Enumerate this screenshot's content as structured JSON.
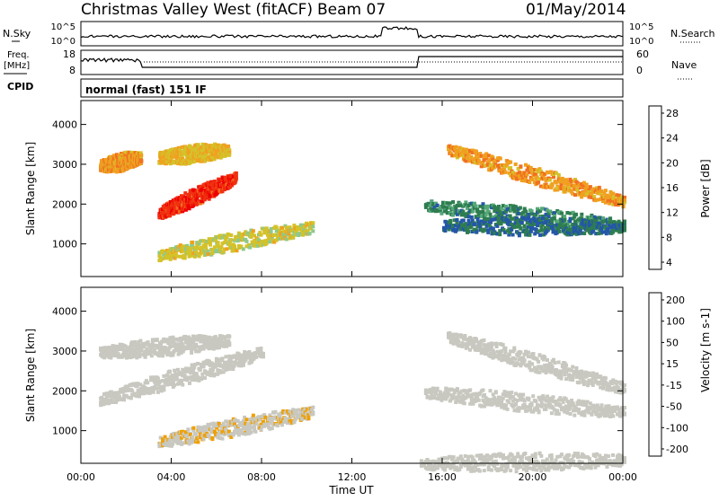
{
  "header": {
    "station": "Christmas Valley West (fitACF)",
    "beam": "Beam 07",
    "date": "01/May/2014"
  },
  "panels": {
    "nsky_label": "N.Sky",
    "nsearch_label": "N.Search",
    "nsky_ticks": [
      "10^5",
      "10^0"
    ],
    "freq_label_line1": "Freq.",
    "freq_label_line2": "[MHz]",
    "freq_ticks": [
      "18",
      "8"
    ],
    "nave_label": "Nave",
    "nave_ticks": [
      "60",
      "0"
    ],
    "cpid_label": "CPID",
    "cpid_text": "normal (fast) 151 IF"
  },
  "chart_data": [
    {
      "type": "heatmap",
      "title": "",
      "xlabel": "Time UT",
      "ylabel": "Slant Range [km]",
      "xlim": [
        0,
        24
      ],
      "ylim": [
        180,
        4600
      ],
      "x_ticks": [
        "00:00",
        "04:00",
        "08:00",
        "12:00",
        "16:00",
        "20:00",
        "00:00"
      ],
      "y_ticks": [
        "1000",
        "2000",
        "3000",
        "4000"
      ],
      "colorbar": {
        "label": "Power [dB]",
        "ticks": [
          "28",
          "24",
          "20",
          "16",
          "12",
          "8",
          "4"
        ],
        "range": [
          0,
          30
        ],
        "colors": [
          "#0000ff",
          "#2456a8",
          "#2e7d50",
          "#56a878",
          "#8fc88a",
          "#d4c22a",
          "#f0a020",
          "#f07020",
          "#f03010",
          "#ee0000"
        ]
      },
      "features": [
        {
          "name": "morning upper band",
          "t_start": 0.8,
          "t_end": 2.6,
          "range_start": 3000,
          "range_end": 3200,
          "value": 20
        },
        {
          "name": "morning upper band 2",
          "t_start": 3.4,
          "t_end": 6.5,
          "range_start": 3200,
          "range_end": 3400,
          "value": 18
        },
        {
          "name": "morning mid band",
          "t_start": 3.4,
          "t_end": 6.8,
          "range_start": 1800,
          "range_end": 2700,
          "value": 26
        },
        {
          "name": "morning lower band",
          "t_start": 3.4,
          "t_end": 10.2,
          "range_start": 750,
          "range_end": 1450,
          "value": 16
        },
        {
          "name": "evening upper band",
          "t_start": 16.2,
          "t_end": 24.0,
          "range_start": 3400,
          "range_end": 2100,
          "value": 20
        },
        {
          "name": "evening mid band",
          "t_start": 15.2,
          "t_end": 24.0,
          "range_start": 2000,
          "range_end": 1500,
          "value": 8
        },
        {
          "name": "evening lower band",
          "t_start": 16.0,
          "t_end": 24.0,
          "range_start": 1500,
          "range_end": 1450,
          "value": 6
        }
      ]
    },
    {
      "type": "heatmap",
      "title": "",
      "xlabel": "Time UT",
      "ylabel": "Slant Range [km]",
      "xlim": [
        0,
        24
      ],
      "ylim": [
        180,
        4600
      ],
      "x_ticks": [
        "00:00",
        "04:00",
        "08:00",
        "12:00",
        "16:00",
        "20:00",
        "00:00"
      ],
      "y_ticks": [
        "1000",
        "2000",
        "3000",
        "4000"
      ],
      "colorbar": {
        "label": "Velocity [m s-1]",
        "ticks": [
          "200",
          "100",
          "50",
          "15",
          "-15",
          "-50",
          "-100",
          "-200"
        ],
        "range": [
          -250,
          250
        ],
        "colors": [
          "#ee0000",
          "#f05010",
          "#f08010",
          "#f0a000",
          "#c8c8c0",
          "#c8c8c0",
          "#78c850",
          "#2e8c40",
          "#2456a8",
          "#1020c0"
        ]
      },
      "features": [
        {
          "name": "morning upper band",
          "t_start": 0.8,
          "t_end": 6.5,
          "range_start": 3000,
          "range_end": 3300,
          "value": 0
        },
        {
          "name": "morning mid band",
          "t_start": 0.8,
          "t_end": 8.0,
          "range_start": 1800,
          "range_end": 3000,
          "value": 0
        },
        {
          "name": "morning lower band",
          "t_start": 3.4,
          "t_end": 10.2,
          "range_start": 750,
          "range_end": 1500,
          "value": -45
        },
        {
          "name": "evening upper band",
          "t_start": 16.2,
          "t_end": 24.0,
          "range_start": 3400,
          "range_end": 2100,
          "value": 0
        },
        {
          "name": "evening mid band",
          "t_start": 15.2,
          "t_end": 24.0,
          "range_start": 2000,
          "range_end": 1500,
          "value": 0
        },
        {
          "name": "ground scatter near range",
          "t_start": 15.0,
          "t_end": 24.0,
          "range_start": 200,
          "range_end": 300,
          "value": 40
        }
      ]
    }
  ]
}
